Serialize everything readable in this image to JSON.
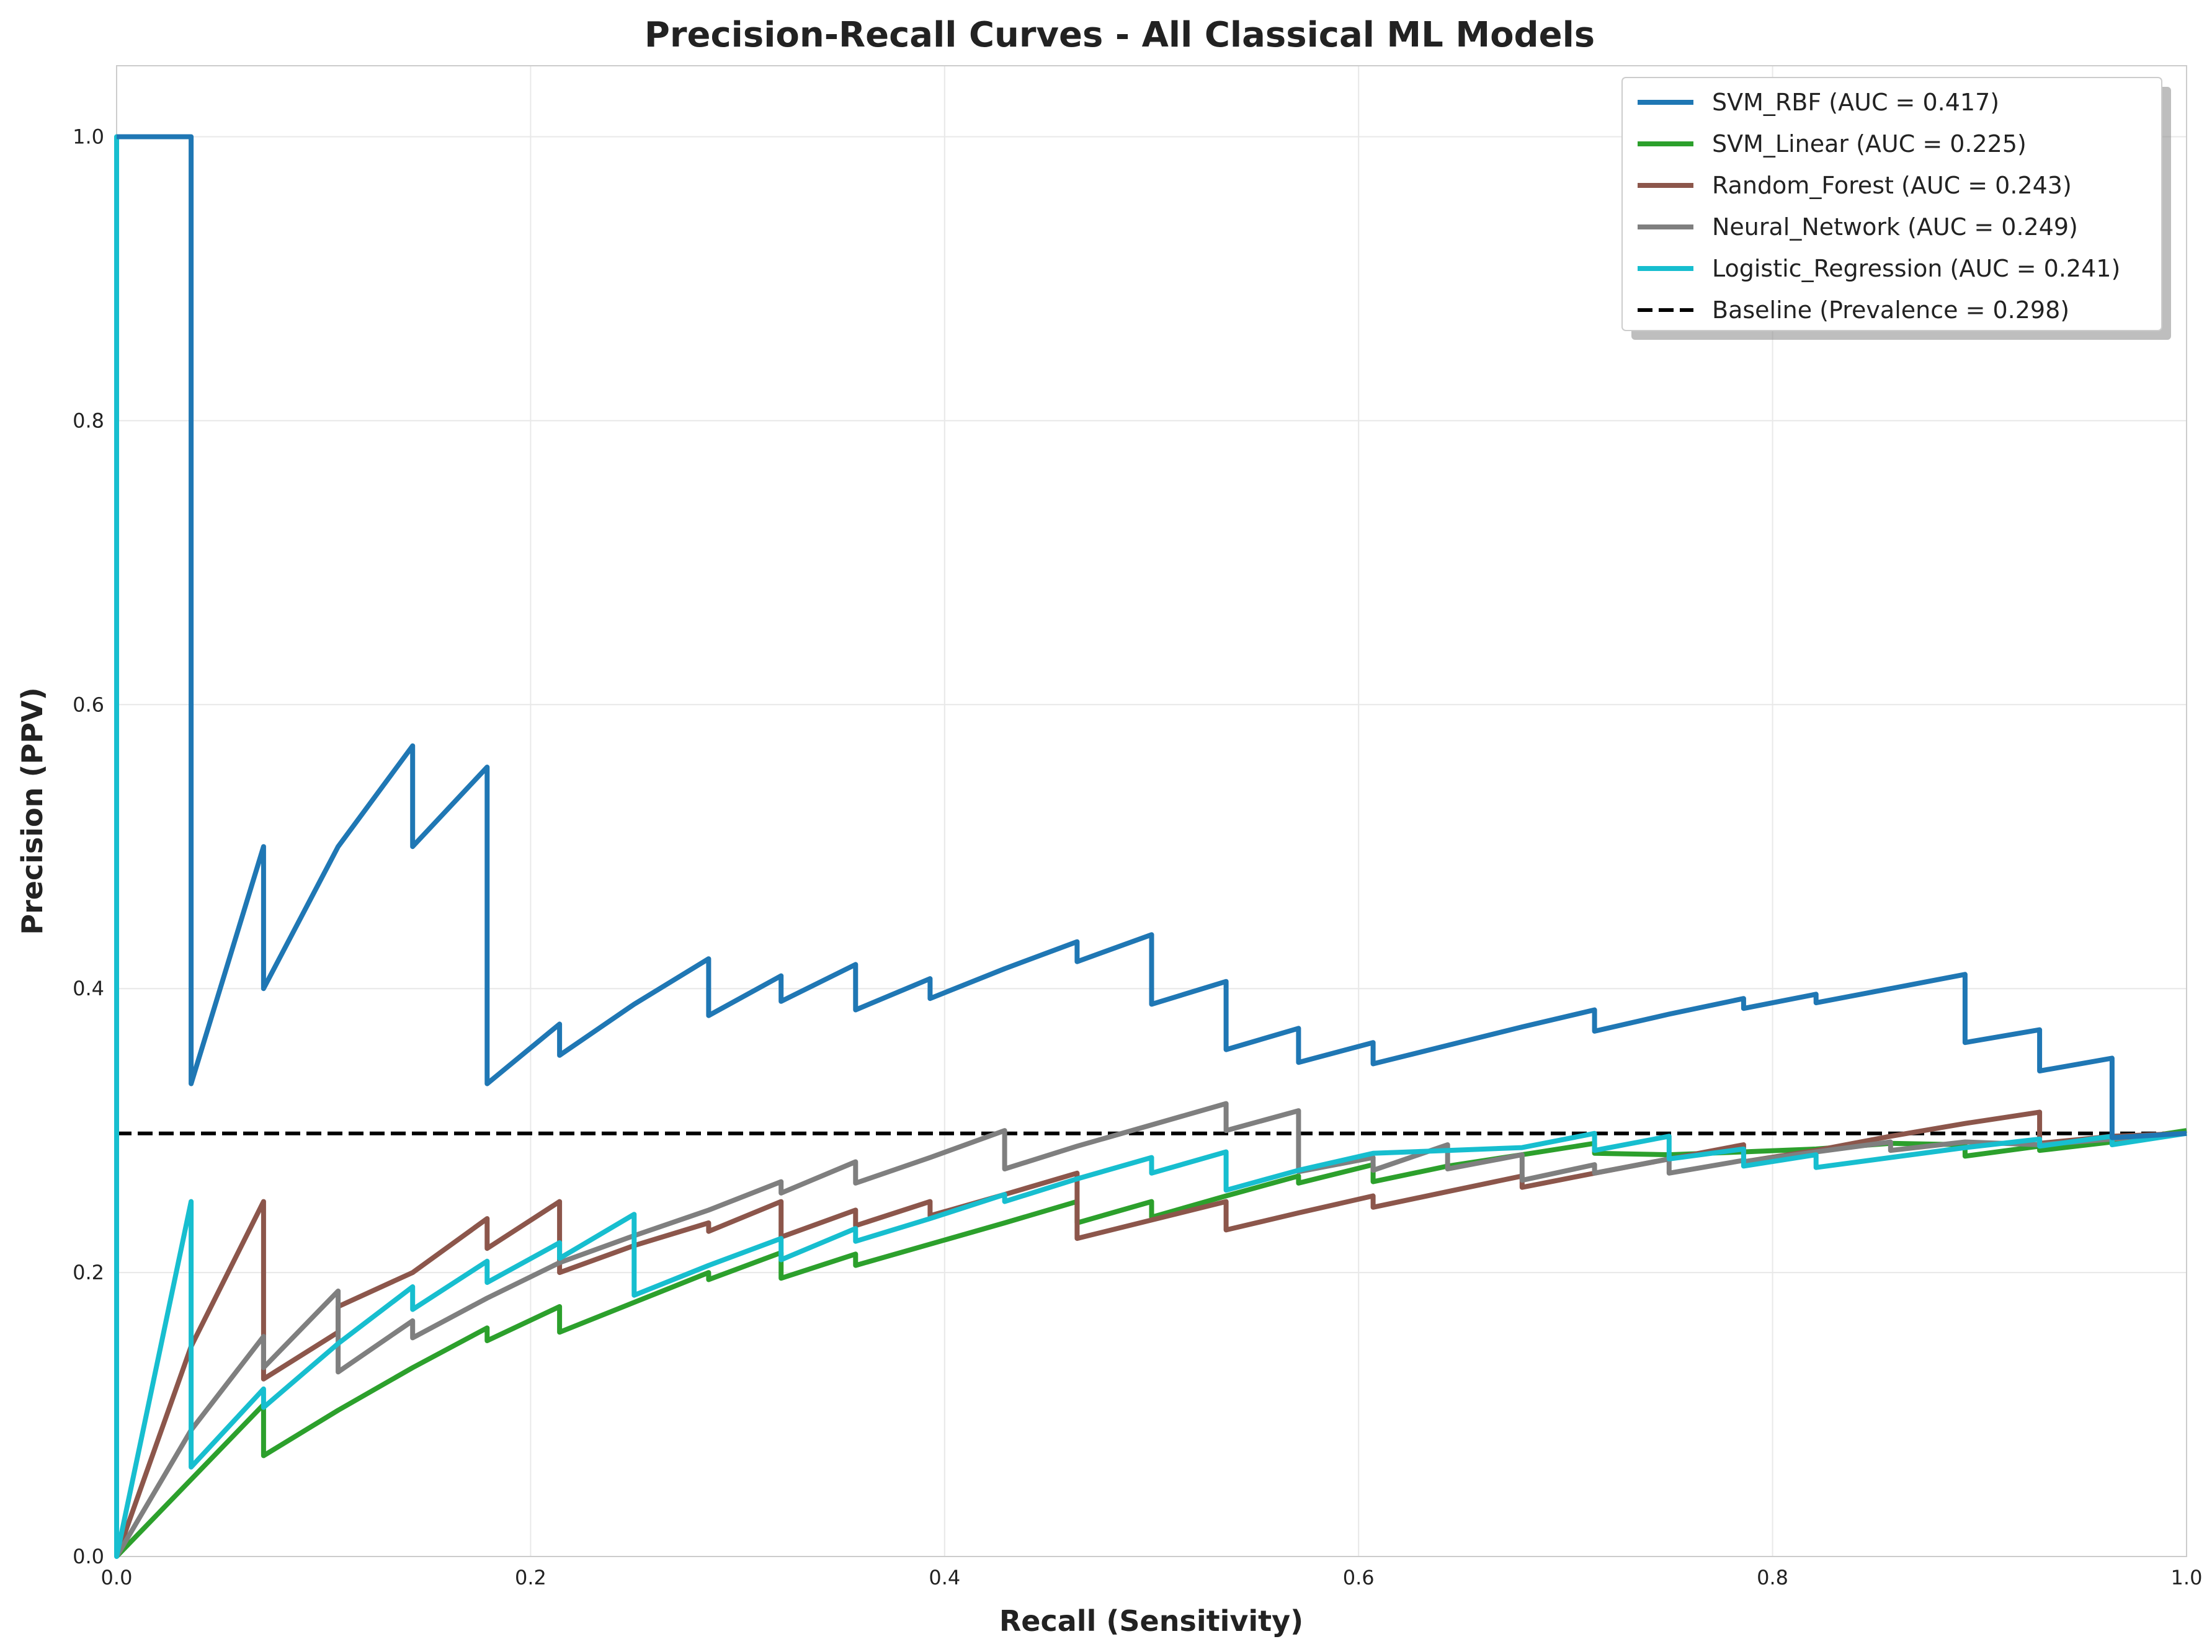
{
  "chart_data": {
    "type": "line",
    "title": "Precision-Recall Curves - All Classical ML Models",
    "xlabel": "Recall (Sensitivity)",
    "ylabel": "Precision (PPV)",
    "xlim": [
      0,
      1
    ],
    "ylim": [
      0,
      1.05
    ],
    "xticks": [
      "0.0",
      "0.2",
      "0.4",
      "0.6",
      "0.8",
      "1.0"
    ],
    "yticks": [
      "0.0",
      "0.2",
      "0.4",
      "0.6",
      "0.8",
      "1.0"
    ],
    "grid": true,
    "legend_position": "top-right",
    "series": [
      {
        "name": "SVM_RBF (AUC = 0.417)",
        "color": "#1f77b4",
        "x": [
          0,
          0.036,
          0.036,
          0.071,
          0.071,
          0.107,
          0.143,
          0.143,
          0.179,
          0.179,
          0.214,
          0.214,
          0.25,
          0.286,
          0.286,
          0.321,
          0.321,
          0.357,
          0.357,
          0.393,
          0.393,
          0.429,
          0.464,
          0.464,
          0.5,
          0.5,
          0.536,
          0.536,
          0.571,
          0.571,
          0.607,
          0.607,
          0.643,
          0.679,
          0.714,
          0.714,
          0.75,
          0.786,
          0.786,
          0.821,
          0.821,
          0.857,
          0.893,
          0.893,
          0.929,
          0.929,
          0.964,
          0.964,
          1.0
        ],
        "y": [
          1.0,
          1.0,
          0.333,
          0.5,
          0.4,
          0.5,
          0.571,
          0.5,
          0.556,
          0.333,
          0.375,
          0.353,
          0.389,
          0.421,
          0.381,
          0.409,
          0.391,
          0.417,
          0.385,
          0.407,
          0.393,
          0.414,
          0.433,
          0.419,
          0.438,
          0.389,
          0.405,
          0.357,
          0.372,
          0.348,
          0.362,
          0.347,
          0.36,
          0.373,
          0.385,
          0.37,
          0.382,
          0.393,
          0.386,
          0.396,
          0.39,
          0.4,
          0.41,
          0.362,
          0.371,
          0.342,
          0.351,
          0.295,
          0.298
        ]
      },
      {
        "name": "SVM_Linear (AUC = 0.225)",
        "color": "#2ca02c",
        "x": [
          0,
          0.071,
          0.071,
          0.107,
          0.143,
          0.179,
          0.179,
          0.214,
          0.214,
          0.25,
          0.286,
          0.286,
          0.321,
          0.321,
          0.357,
          0.357,
          0.393,
          0.429,
          0.464,
          0.464,
          0.5,
          0.5,
          0.536,
          0.571,
          0.571,
          0.607,
          0.607,
          0.643,
          0.679,
          0.714,
          0.714,
          0.75,
          0.786,
          0.821,
          0.857,
          0.893,
          0.893,
          0.929,
          0.929,
          0.964,
          1.0
        ],
        "y": [
          0,
          0.107,
          0.071,
          0.103,
          0.133,
          0.161,
          0.152,
          0.176,
          0.158,
          0.179,
          0.2,
          0.195,
          0.214,
          0.196,
          0.213,
          0.205,
          0.22,
          0.235,
          0.25,
          0.235,
          0.25,
          0.239,
          0.254,
          0.268,
          0.263,
          0.276,
          0.264,
          0.275,
          0.283,
          0.291,
          0.284,
          0.283,
          0.285,
          0.287,
          0.291,
          0.29,
          0.282,
          0.289,
          0.286,
          0.292,
          0.3
        ]
      },
      {
        "name": "Random_Forest (AUC = 0.243)",
        "color": "#8c564b",
        "x": [
          0,
          0.036,
          0.071,
          0.071,
          0.107,
          0.107,
          0.143,
          0.179,
          0.179,
          0.214,
          0.214,
          0.25,
          0.286,
          0.286,
          0.321,
          0.321,
          0.357,
          0.357,
          0.393,
          0.393,
          0.429,
          0.464,
          0.464,
          0.5,
          0.536,
          0.536,
          0.571,
          0.607,
          0.607,
          0.643,
          0.679,
          0.679,
          0.714,
          0.75,
          0.786,
          0.786,
          0.821,
          0.857,
          0.893,
          0.929,
          0.929,
          0.964,
          1.0
        ],
        "y": [
          0,
          0.148,
          0.25,
          0.125,
          0.158,
          0.176,
          0.2,
          0.238,
          0.217,
          0.25,
          0.2,
          0.219,
          0.235,
          0.229,
          0.25,
          0.225,
          0.244,
          0.233,
          0.25,
          0.24,
          0.255,
          0.27,
          0.224,
          0.237,
          0.25,
          0.23,
          0.242,
          0.254,
          0.246,
          0.257,
          0.268,
          0.26,
          0.27,
          0.28,
          0.29,
          0.278,
          0.286,
          0.296,
          0.305,
          0.313,
          0.291,
          0.296,
          0.298
        ]
      },
      {
        "name": "Neural_Network (AUC = 0.249)",
        "color": "#7f7f7f",
        "x": [
          0,
          0.036,
          0.071,
          0.071,
          0.107,
          0.107,
          0.143,
          0.143,
          0.179,
          0.214,
          0.25,
          0.286,
          0.321,
          0.321,
          0.357,
          0.357,
          0.393,
          0.429,
          0.429,
          0.464,
          0.5,
          0.536,
          0.536,
          0.571,
          0.571,
          0.607,
          0.607,
          0.643,
          0.643,
          0.679,
          0.679,
          0.714,
          0.714,
          0.75,
          0.75,
          0.786,
          0.786,
          0.821,
          0.857,
          0.857,
          0.893,
          0.929,
          0.964,
          1.0
        ],
        "y": [
          0,
          0.089,
          0.155,
          0.133,
          0.187,
          0.13,
          0.166,
          0.154,
          0.182,
          0.207,
          0.226,
          0.244,
          0.264,
          0.256,
          0.278,
          0.263,
          0.281,
          0.3,
          0.273,
          0.289,
          0.304,
          0.319,
          0.3,
          0.314,
          0.271,
          0.281,
          0.272,
          0.29,
          0.273,
          0.283,
          0.265,
          0.276,
          0.27,
          0.28,
          0.27,
          0.279,
          0.278,
          0.285,
          0.292,
          0.286,
          0.292,
          0.29,
          0.294,
          0.298
        ]
      },
      {
        "name": "Logistic_Regression (AUC = 0.241)",
        "color": "#17becf",
        "x": [
          0,
          0,
          0,
          0.036,
          0.036,
          0.071,
          0.071,
          0.107,
          0.143,
          0.143,
          0.179,
          0.179,
          0.214,
          0.214,
          0.25,
          0.25,
          0.286,
          0.321,
          0.321,
          0.357,
          0.357,
          0.393,
          0.429,
          0.429,
          0.464,
          0.5,
          0.5,
          0.536,
          0.536,
          0.571,
          0.607,
          0.643,
          0.679,
          0.714,
          0.714,
          0.75,
          0.75,
          0.786,
          0.786,
          0.821,
          0.821,
          0.857,
          0.893,
          0.929,
          0.929,
          0.964,
          0.964,
          1.0
        ],
        "y": [
          0.298,
          1.0,
          0,
          0.25,
          0.063,
          0.118,
          0.105,
          0.15,
          0.19,
          0.174,
          0.208,
          0.193,
          0.221,
          0.21,
          0.241,
          0.184,
          0.205,
          0.224,
          0.209,
          0.231,
          0.222,
          0.238,
          0.255,
          0.25,
          0.266,
          0.281,
          0.27,
          0.285,
          0.258,
          0.272,
          0.284,
          0.286,
          0.288,
          0.298,
          0.286,
          0.296,
          0.28,
          0.287,
          0.275,
          0.283,
          0.274,
          0.281,
          0.288,
          0.294,
          0.289,
          0.296,
          0.29,
          0.298
        ]
      },
      {
        "name": "Baseline (Prevalence = 0.298)",
        "color": "#000000",
        "dashed": true,
        "x": [
          0,
          1.0
        ],
        "y": [
          0.298,
          0.298
        ]
      }
    ]
  }
}
